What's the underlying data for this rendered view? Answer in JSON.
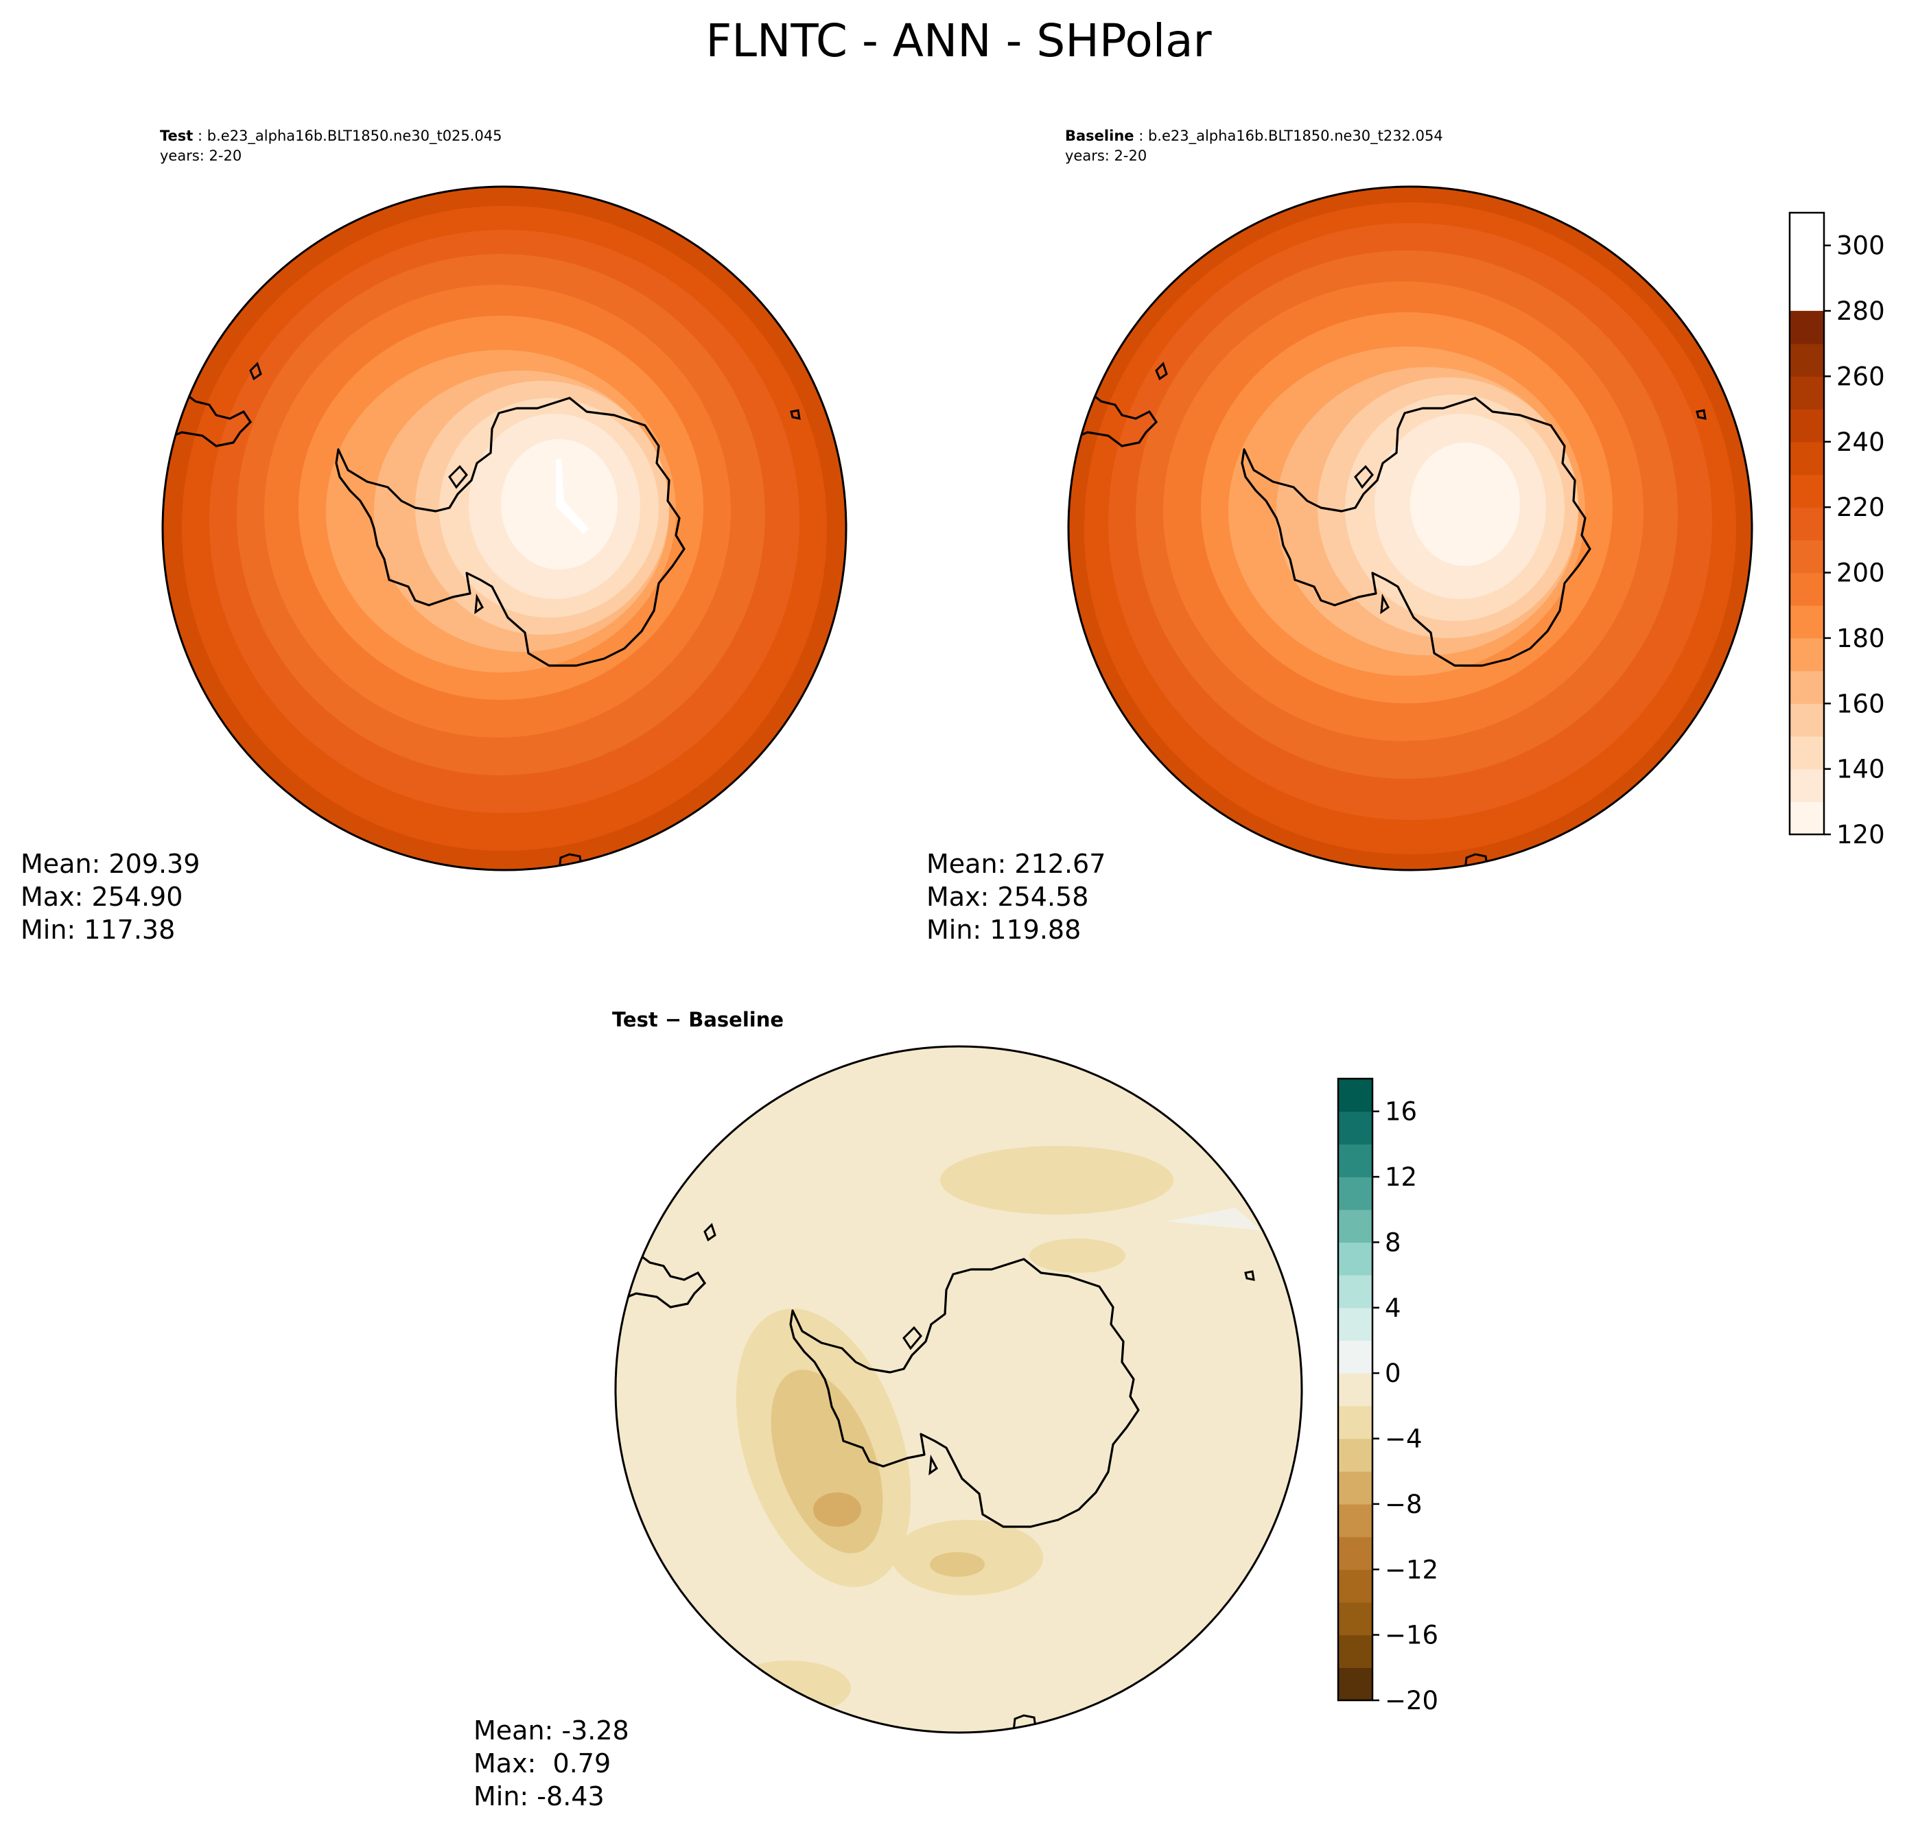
{
  "title": "FLNTC - ANN - SHPolar",
  "panels": [
    {
      "label_bold": "Test",
      "case": "b.e23_alpha16b.BLT1850.ne30_t025.045",
      "years": "years: 2-20",
      "stats": [
        "Mean: 209.39",
        "Max: 254.90",
        "Min: 117.38"
      ]
    },
    {
      "label_bold": "Baseline",
      "case": "b.e23_alpha16b.BLT1850.ne30_t232.054",
      "years": "years: 2-20",
      "stats": [
        "Mean: 212.67",
        "Max: 254.58",
        "Min: 119.88"
      ]
    },
    {
      "label_bold": "Test − Baseline",
      "stats": [
        "Mean: -3.28",
        "Max:  0.79",
        "Min: -8.43"
      ]
    }
  ],
  "chart_data": [
    {
      "type": "heatmap",
      "name": "Test",
      "projection": "south polar stereographic",
      "stats": {
        "mean": 209.39,
        "max": 254.9,
        "min": 117.38
      },
      "colormap": "Oranges"
    },
    {
      "type": "heatmap",
      "name": "Baseline",
      "projection": "south polar stereographic",
      "stats": {
        "mean": 212.67,
        "max": 254.58,
        "min": 119.88
      },
      "colormap": "Oranges"
    },
    {
      "type": "heatmap",
      "name": "Test − Baseline",
      "projection": "south polar stereographic",
      "stats": {
        "mean": -3.28,
        "max": 0.79,
        "min": -8.43
      },
      "colormap": "BrBG"
    }
  ],
  "colorbars": {
    "main": {
      "levels": [
        120,
        130,
        140,
        150,
        160,
        170,
        180,
        190,
        200,
        210,
        220,
        230,
        240,
        250,
        260,
        270,
        280,
        290,
        300,
        310
      ],
      "tick_labels": [
        "120",
        "140",
        "160",
        "180",
        "200",
        "220",
        "240",
        "260",
        "280",
        "300"
      ],
      "tick_values": [
        120,
        140,
        160,
        180,
        200,
        220,
        240,
        260,
        280,
        300
      ],
      "colors": [
        "#fff5eb",
        "#fee9d6",
        "#fdddbe",
        "#fdcca2",
        "#fdb881",
        "#fda35e",
        "#fc8e41",
        "#f57a2d",
        "#ec6d23",
        "#e75f18",
        "#e2560c",
        "#d44d04",
        "#c24204",
        "#ac3a03",
        "#963303",
        "#7f2704"
      ]
    },
    "diff": {
      "levels": [
        -20,
        -18,
        -16,
        -14,
        -12,
        -10,
        -8,
        -6,
        -4,
        -2,
        0,
        2,
        4,
        6,
        8,
        10,
        12,
        14,
        16,
        18
      ],
      "tick_labels": [
        "−20",
        "−16",
        "−12",
        "−8",
        "−4",
        "0",
        "4",
        "8",
        "12",
        "16"
      ],
      "tick_values": [
        -20,
        -16,
        -12,
        -8,
        -4,
        0,
        4,
        8,
        12,
        16
      ],
      "colors": [
        "#583208",
        "#7a4a0c",
        "#955c14",
        "#a8691d",
        "#b97a30",
        "#c89145",
        "#d7ad65",
        "#e3c786",
        "#eedcaa",
        "#f4e9cc",
        "#eff3f1",
        "#d4ede9",
        "#b6e2dc",
        "#94d3c9",
        "#6ebbae",
        "#4aa296",
        "#2a8a7f",
        "#127168",
        "#015b51",
        "#01453b"
      ]
    }
  }
}
